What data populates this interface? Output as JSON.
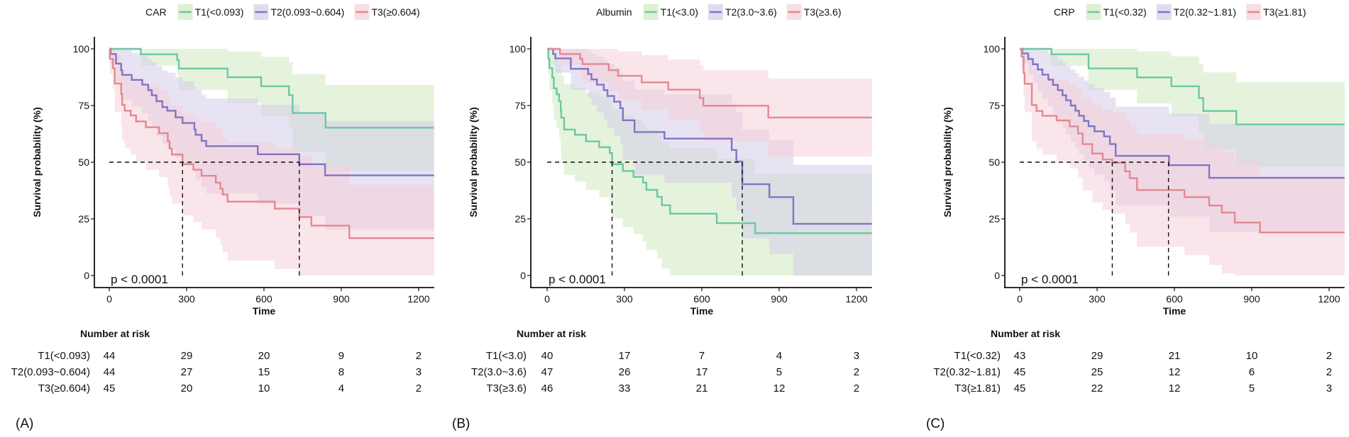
{
  "chart_data": [
    {
      "panel": "(A)",
      "type": "line",
      "legend_title": "CAR",
      "xlabel": "Time",
      "ylabel": "Survival probability (%)",
      "xlim": [
        0,
        1260
      ],
      "ylim": [
        0,
        100
      ],
      "xticks": [
        "0",
        "300",
        "600",
        "900",
        "1200"
      ],
      "yticks": [
        "0",
        "25",
        "50",
        "75",
        "100"
      ],
      "p_value": "p < 0.0001",
      "risk_table_title": "Number at risk",
      "medians": [
        284,
        737
      ],
      "series": [
        {
          "name": "T1(<0.093)",
          "color": "#6cc7a5",
          "band": "#cfe9bf",
          "n": 44,
          "steps": [
            [
              0,
              100
            ],
            [
              122,
              97.6
            ],
            [
              263,
              95.1
            ],
            [
              270,
              91.3
            ],
            [
              459,
              87.5
            ],
            [
              589,
              83.5
            ],
            [
              697,
              79.6
            ],
            [
              711,
              71.7
            ],
            [
              839,
              65.2
            ]
          ],
          "at_risk": [
            "44",
            "29",
            "20",
            "9",
            "2"
          ]
        },
        {
          "name": "T2(0.093~0.604)",
          "color": "#7f76c2",
          "band": "#d4cce8",
          "n": 44,
          "steps": [
            [
              0,
              100
            ],
            [
              5,
              97.7
            ],
            [
              26,
              93.5
            ],
            [
              46,
              90.6
            ],
            [
              50,
              88.5
            ],
            [
              87,
              86.3
            ],
            [
              128,
              84.2
            ],
            [
              151,
              81.8
            ],
            [
              165,
              79.5
            ],
            [
              183,
              76.9
            ],
            [
              206,
              74.3
            ],
            [
              225,
              72.7
            ],
            [
              257,
              69.8
            ],
            [
              284,
              67.3
            ],
            [
              330,
              64.4
            ],
            [
              335,
              62.1
            ],
            [
              358,
              59.4
            ],
            [
              376,
              57.1
            ],
            [
              576,
              53.5
            ],
            [
              737,
              49.1
            ],
            [
              837,
              44.2
            ]
          ],
          "at_risk": [
            "44",
            "27",
            "15",
            "8",
            "3"
          ]
        },
        {
          "name": "T3(≥0.604)",
          "color": "#e18990",
          "band": "#f5cfd9",
          "n": 45,
          "steps": [
            [
              0,
              100
            ],
            [
              2,
              95.6
            ],
            [
              14,
              91.5
            ],
            [
              21,
              84.7
            ],
            [
              46,
              80
            ],
            [
              50,
              75.3
            ],
            [
              60,
              72.7
            ],
            [
              83,
              70.6
            ],
            [
              104,
              68
            ],
            [
              142,
              65.4
            ],
            [
              193,
              62.8
            ],
            [
              227,
              59.2
            ],
            [
              234,
              56
            ],
            [
              243,
              53.4
            ],
            [
              284,
              49.1
            ],
            [
              326,
              46.7
            ],
            [
              358,
              44
            ],
            [
              413,
              41
            ],
            [
              431,
              38.3
            ],
            [
              440,
              35.7
            ],
            [
              459,
              32.6
            ],
            [
              642,
              29.5
            ],
            [
              737,
              25.8
            ],
            [
              784,
              22
            ],
            [
              931,
              16.5
            ]
          ],
          "at_risk": [
            "45",
            "20",
            "10",
            "4",
            "2"
          ]
        }
      ]
    },
    {
      "panel": "(B)",
      "type": "line",
      "legend_title": "Albumin",
      "xlabel": "Time",
      "ylabel": "Survival probability (%)",
      "xlim": [
        0,
        1260
      ],
      "ylim": [
        0,
        100
      ],
      "xticks": [
        "0",
        "300",
        "600",
        "900",
        "1200"
      ],
      "yticks": [
        "0",
        "25",
        "50",
        "75",
        "100"
      ],
      "p_value": "p < 0.0001",
      "risk_table_title": "Number at risk",
      "medians": [
        252,
        757
      ],
      "series": [
        {
          "name": "T1(<3.0)",
          "color": "#6cc7a5",
          "band": "#cfe9bf",
          "n": 40,
          "steps": [
            [
              0,
              100
            ],
            [
              5,
              95.6
            ],
            [
              9,
              91.5
            ],
            [
              20,
              87.3
            ],
            [
              26,
              82.6
            ],
            [
              37,
              80
            ],
            [
              46,
              76.9
            ],
            [
              53,
              72.7
            ],
            [
              55,
              69.6
            ],
            [
              66,
              64.4
            ],
            [
              108,
              62.1
            ],
            [
              151,
              59.2
            ],
            [
              202,
              56.6
            ],
            [
              243,
              54
            ],
            [
              252,
              49.1
            ],
            [
              294,
              46.1
            ],
            [
              335,
              43.5
            ],
            [
              372,
              41
            ],
            [
              385,
              37.8
            ],
            [
              427,
              34.7
            ],
            [
              445,
              31
            ],
            [
              477,
              27.3
            ],
            [
              658,
              23.1
            ],
            [
              807,
              18.7
            ]
          ],
          "at_risk": [
            "40",
            "17",
            "7",
            "4",
            "3"
          ]
        },
        {
          "name": "T2(3.0~3.6)",
          "color": "#7f76c2",
          "band": "#d4cce8",
          "n": 47,
          "steps": [
            [
              0,
              100
            ],
            [
              23,
              97.7
            ],
            [
              32,
              95.8
            ],
            [
              92,
              91.2
            ],
            [
              159,
              88.9
            ],
            [
              172,
              86.5
            ],
            [
              193,
              84.2
            ],
            [
              220,
              81.8
            ],
            [
              234,
              79.2
            ],
            [
              260,
              76.7
            ],
            [
              284,
              73.8
            ],
            [
              294,
              68.5
            ],
            [
              339,
              63.3
            ],
            [
              455,
              60.4
            ],
            [
              716,
              55.4
            ],
            [
              734,
              50.3
            ],
            [
              757,
              40.3
            ],
            [
              862,
              34.6
            ],
            [
              955,
              22.8
            ]
          ],
          "at_risk": [
            "47",
            "26",
            "17",
            "5",
            "2"
          ]
        },
        {
          "name": "T3(≥3.6)",
          "color": "#e18990",
          "band": "#f5cfd9",
          "n": 46,
          "steps": [
            [
              0,
              100
            ],
            [
              50,
              97.7
            ],
            [
              128,
              95.6
            ],
            [
              137,
              93.3
            ],
            [
              239,
              90.6
            ],
            [
              275,
              88.1
            ],
            [
              367,
              85.2
            ],
            [
              470,
              82
            ],
            [
              592,
              78.3
            ],
            [
              606,
              74.9
            ],
            [
              858,
              69.7
            ]
          ],
          "at_risk": [
            "46",
            "33",
            "21",
            "12",
            "2"
          ]
        }
      ]
    },
    {
      "panel": "(C)",
      "type": "line",
      "legend_title": "CRP",
      "xlabel": "Time",
      "ylabel": "Survival probability (%)",
      "xlim": [
        0,
        1260
      ],
      "ylim": [
        0,
        100
      ],
      "xticks": [
        "0",
        "300",
        "600",
        "900",
        "1200"
      ],
      "yticks": [
        "0",
        "25",
        "50",
        "75",
        "100"
      ],
      "p_value": "p < 0.0001",
      "risk_table_title": "Number at risk",
      "medians": [
        359,
        577
      ],
      "series": [
        {
          "name": "T1(<0.32)",
          "color": "#6cc7a5",
          "band": "#cfe9bf",
          "n": 43,
          "steps": [
            [
              0,
              100
            ],
            [
              123,
              97.6
            ],
            [
              267,
              91.4
            ],
            [
              455,
              87.4
            ],
            [
              588,
              83.5
            ],
            [
              695,
              78.3
            ],
            [
              712,
              72.6
            ],
            [
              840,
              66.7
            ]
          ],
          "at_risk": [
            "43",
            "29",
            "21",
            "10",
            "2"
          ]
        },
        {
          "name": "T2(0.32~1.81)",
          "color": "#7f76c2",
          "band": "#d4cce8",
          "n": 45,
          "steps": [
            [
              0,
              100
            ],
            [
              10,
              98
            ],
            [
              33,
              95.5
            ],
            [
              51,
              93.2
            ],
            [
              70,
              90.9
            ],
            [
              88,
              88.6
            ],
            [
              111,
              86.4
            ],
            [
              129,
              84.1
            ],
            [
              148,
              81.8
            ],
            [
              166,
              79.5
            ],
            [
              180,
              77.3
            ],
            [
              198,
              75
            ],
            [
              216,
              72.7
            ],
            [
              230,
              70.5
            ],
            [
              249,
              68.2
            ],
            [
              267,
              65.9
            ],
            [
              290,
              63.6
            ],
            [
              327,
              61.4
            ],
            [
              350,
              58
            ],
            [
              372,
              52.8
            ],
            [
              579,
              48.7
            ],
            [
              735,
              43.1
            ]
          ],
          "at_risk": [
            "45",
            "25",
            "12",
            "6",
            "2"
          ]
        },
        {
          "name": "T3(≥1.81)",
          "color": "#e18990",
          "band": "#f5cfd9",
          "n": 45,
          "steps": [
            [
              0,
              100
            ],
            [
              7,
              96.6
            ],
            [
              15,
              89.3
            ],
            [
              19,
              84.6
            ],
            [
              47,
              75.2
            ],
            [
              65,
              72.6
            ],
            [
              88,
              70.5
            ],
            [
              143,
              68.4
            ],
            [
              194,
              65.8
            ],
            [
              226,
              62.7
            ],
            [
              244,
              58
            ],
            [
              281,
              53.8
            ],
            [
              322,
              51.2
            ],
            [
              359,
              49.7
            ],
            [
              409,
              46
            ],
            [
              427,
              42.9
            ],
            [
              455,
              37.7
            ],
            [
              639,
              34.6
            ],
            [
              735,
              30.9
            ],
            [
              784,
              27.8
            ],
            [
              834,
              23.4
            ],
            [
              932,
              19
            ]
          ],
          "at_risk": [
            "45",
            "22",
            "12",
            "5",
            "3"
          ]
        }
      ]
    }
  ]
}
